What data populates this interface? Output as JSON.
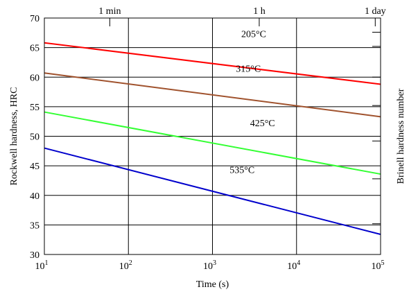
{
  "chart_data": {
    "type": "line",
    "x_scale": "log",
    "xlabel": "Time (s)",
    "ylabel": "Rockwell hardness, HRC",
    "y2label": "Brinell hardness number",
    "xlim": [
      10,
      100000
    ],
    "ylim": [
      30,
      70
    ],
    "grid": true,
    "x_tick_values": [
      10,
      100,
      1000,
      10000,
      100000
    ],
    "x_tick_labels": [
      {
        "base": "10",
        "exp": "1"
      },
      {
        "base": "10",
        "exp": "2"
      },
      {
        "base": "10",
        "exp": "3"
      },
      {
        "base": "10",
        "exp": "4"
      },
      {
        "base": "10",
        "exp": "5"
      }
    ],
    "y_ticks": [
      30,
      35,
      40,
      45,
      50,
      55,
      60,
      65,
      70
    ],
    "top_axis": [
      {
        "label": "1 min",
        "value": 60
      },
      {
        "label": "1 h",
        "value": 3600
      },
      {
        "label": "1 day",
        "value": 86400
      }
    ],
    "series": [
      {
        "name": "205°C",
        "color": "#ff0000",
        "x": [
          10,
          100000
        ],
        "y": [
          65.8,
          58.8
        ],
        "label_at": [
          2200,
          66.8
        ]
      },
      {
        "name": "315°C",
        "color": "#a0522d",
        "x": [
          10,
          100000
        ],
        "y": [
          60.7,
          53.3
        ],
        "label_at": [
          1900,
          60.9
        ]
      },
      {
        "name": "425°C",
        "color": "#33ff33",
        "x": [
          10,
          100000
        ],
        "y": [
          54.1,
          43.6
        ],
        "label_at": [
          2800,
          51.7
        ]
      },
      {
        "name": "535°C",
        "color": "#0000cc",
        "x": [
          10,
          100000
        ],
        "y": [
          48.0,
          33.4
        ],
        "label_at": [
          1600,
          43.8
        ]
      }
    ]
  }
}
